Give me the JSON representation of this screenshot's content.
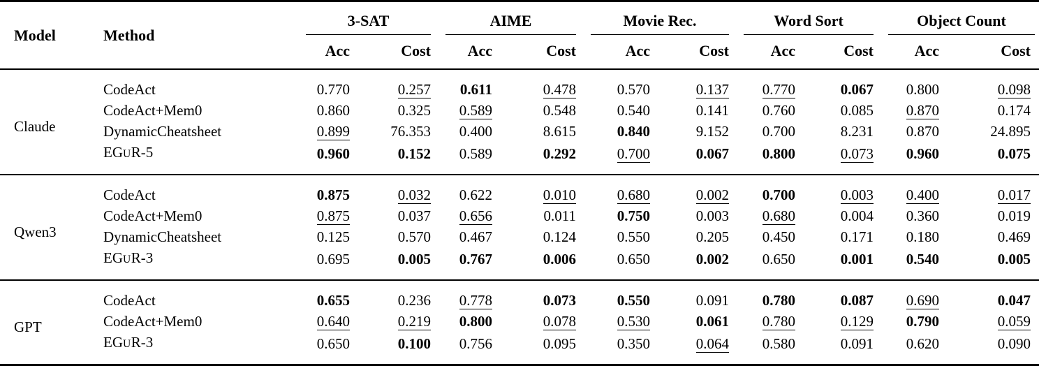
{
  "page": {
    "background_color": "#ffffff",
    "text_color": "#000000"
  },
  "table": {
    "model_header": "Model",
    "method_header": "Method",
    "acc_label": "Acc",
    "cost_label": "Cost",
    "groups": [
      "3-SAT",
      "AIME",
      "Movie Rec.",
      "Word Sort",
      "Object Count"
    ],
    "blocks": [
      {
        "model": "Claude",
        "rows": [
          {
            "method": [
              {
                "t": "CodeAct"
              }
            ],
            "cells": [
              {
                "v": "0.770",
                "s": ""
              },
              {
                "v": "0.257",
                "s": "u"
              },
              {
                "v": "0.611",
                "s": "b"
              },
              {
                "v": "0.478",
                "s": "u"
              },
              {
                "v": "0.570",
                "s": ""
              },
              {
                "v": "0.137",
                "s": "u"
              },
              {
                "v": "0.770",
                "s": "u"
              },
              {
                "v": "0.067",
                "s": "b"
              },
              {
                "v": "0.800",
                "s": ""
              },
              {
                "v": "0.098",
                "s": "u"
              }
            ]
          },
          {
            "method": [
              {
                "t": "CodeAct+Mem0"
              }
            ],
            "cells": [
              {
                "v": "0.860",
                "s": ""
              },
              {
                "v": "0.325",
                "s": ""
              },
              {
                "v": "0.589",
                "s": "u"
              },
              {
                "v": "0.548",
                "s": ""
              },
              {
                "v": "0.540",
                "s": ""
              },
              {
                "v": "0.141",
                "s": ""
              },
              {
                "v": "0.760",
                "s": ""
              },
              {
                "v": "0.085",
                "s": ""
              },
              {
                "v": "0.870",
                "s": "u"
              },
              {
                "v": "0.174",
                "s": ""
              }
            ]
          },
          {
            "method": [
              {
                "t": "DynamicCheatsheet"
              }
            ],
            "cells": [
              {
                "v": "0.899",
                "s": "u"
              },
              {
                "v": "76.353",
                "s": ""
              },
              {
                "v": "0.400",
                "s": ""
              },
              {
                "v": "8.615",
                "s": ""
              },
              {
                "v": "0.840",
                "s": "b"
              },
              {
                "v": "9.152",
                "s": ""
              },
              {
                "v": "0.700",
                "s": ""
              },
              {
                "v": "8.231",
                "s": ""
              },
              {
                "v": "0.870",
                "s": ""
              },
              {
                "v": "24.895",
                "s": ""
              }
            ]
          },
          {
            "method": [
              {
                "t": "EG"
              },
              {
                "t": "U",
                "sc": true
              },
              {
                "t": "R-5"
              }
            ],
            "cells": [
              {
                "v": "0.960",
                "s": "b"
              },
              {
                "v": "0.152",
                "s": "b"
              },
              {
                "v": "0.589",
                "s": ""
              },
              {
                "v": "0.292",
                "s": "b"
              },
              {
                "v": "0.700",
                "s": "u"
              },
              {
                "v": "0.067",
                "s": "b"
              },
              {
                "v": "0.800",
                "s": "b"
              },
              {
                "v": "0.073",
                "s": "u"
              },
              {
                "v": "0.960",
                "s": "b"
              },
              {
                "v": "0.075",
                "s": "b"
              }
            ]
          }
        ]
      },
      {
        "model": "Qwen3",
        "rows": [
          {
            "method": [
              {
                "t": "CodeAct"
              }
            ],
            "cells": [
              {
                "v": "0.875",
                "s": "b"
              },
              {
                "v": "0.032",
                "s": "u"
              },
              {
                "v": "0.622",
                "s": ""
              },
              {
                "v": "0.010",
                "s": "u"
              },
              {
                "v": "0.680",
                "s": "u"
              },
              {
                "v": "0.002",
                "s": "u"
              },
              {
                "v": "0.700",
                "s": "b"
              },
              {
                "v": "0.003",
                "s": "u"
              },
              {
                "v": "0.400",
                "s": "u"
              },
              {
                "v": "0.017",
                "s": "u"
              }
            ]
          },
          {
            "method": [
              {
                "t": "CodeAct+Mem0"
              }
            ],
            "cells": [
              {
                "v": "0.875",
                "s": "u"
              },
              {
                "v": "0.037",
                "s": ""
              },
              {
                "v": "0.656",
                "s": "u"
              },
              {
                "v": "0.011",
                "s": ""
              },
              {
                "v": "0.750",
                "s": "b"
              },
              {
                "v": "0.003",
                "s": ""
              },
              {
                "v": "0.680",
                "s": "u"
              },
              {
                "v": "0.004",
                "s": ""
              },
              {
                "v": "0.360",
                "s": ""
              },
              {
                "v": "0.019",
                "s": ""
              }
            ]
          },
          {
            "method": [
              {
                "t": "DynamicCheatsheet"
              }
            ],
            "cells": [
              {
                "v": "0.125",
                "s": ""
              },
              {
                "v": "0.570",
                "s": ""
              },
              {
                "v": "0.467",
                "s": ""
              },
              {
                "v": "0.124",
                "s": ""
              },
              {
                "v": "0.550",
                "s": ""
              },
              {
                "v": "0.205",
                "s": ""
              },
              {
                "v": "0.450",
                "s": ""
              },
              {
                "v": "0.171",
                "s": ""
              },
              {
                "v": "0.180",
                "s": ""
              },
              {
                "v": "0.469",
                "s": ""
              }
            ]
          },
          {
            "method": [
              {
                "t": "EG"
              },
              {
                "t": "U",
                "sc": true
              },
              {
                "t": "R-3"
              }
            ],
            "cells": [
              {
                "v": "0.695",
                "s": ""
              },
              {
                "v": "0.005",
                "s": "b"
              },
              {
                "v": "0.767",
                "s": "b"
              },
              {
                "v": "0.006",
                "s": "b"
              },
              {
                "v": "0.650",
                "s": ""
              },
              {
                "v": "0.002",
                "s": "b"
              },
              {
                "v": "0.650",
                "s": ""
              },
              {
                "v": "0.001",
                "s": "b"
              },
              {
                "v": "0.540",
                "s": "b"
              },
              {
                "v": "0.005",
                "s": "b"
              }
            ]
          }
        ]
      },
      {
        "model": "GPT",
        "rows": [
          {
            "method": [
              {
                "t": "CodeAct"
              }
            ],
            "cells": [
              {
                "v": "0.655",
                "s": "b"
              },
              {
                "v": "0.236",
                "s": ""
              },
              {
                "v": "0.778",
                "s": "u"
              },
              {
                "v": "0.073",
                "s": "b"
              },
              {
                "v": "0.550",
                "s": "b"
              },
              {
                "v": "0.091",
                "s": ""
              },
              {
                "v": "0.780",
                "s": "b"
              },
              {
                "v": "0.087",
                "s": "b"
              },
              {
                "v": "0.690",
                "s": "u"
              },
              {
                "v": "0.047",
                "s": "b"
              }
            ]
          },
          {
            "method": [
              {
                "t": "CodeAct+Mem0"
              }
            ],
            "cells": [
              {
                "v": "0.640",
                "s": "u"
              },
              {
                "v": "0.219",
                "s": "u"
              },
              {
                "v": "0.800",
                "s": "b"
              },
              {
                "v": "0.078",
                "s": "u"
              },
              {
                "v": "0.530",
                "s": "u"
              },
              {
                "v": "0.061",
                "s": "b"
              },
              {
                "v": "0.780",
                "s": "u"
              },
              {
                "v": "0.129",
                "s": "u"
              },
              {
                "v": "0.790",
                "s": "b"
              },
              {
                "v": "0.059",
                "s": "u"
              }
            ]
          },
          {
            "method": [
              {
                "t": "EG"
              },
              {
                "t": "U",
                "sc": true
              },
              {
                "t": "R-3"
              }
            ],
            "cells": [
              {
                "v": "0.650",
                "s": ""
              },
              {
                "v": "0.100",
                "s": "b"
              },
              {
                "v": "0.756",
                "s": ""
              },
              {
                "v": "0.095",
                "s": ""
              },
              {
                "v": "0.350",
                "s": ""
              },
              {
                "v": "0.064",
                "s": "u"
              },
              {
                "v": "0.580",
                "s": ""
              },
              {
                "v": "0.091",
                "s": ""
              },
              {
                "v": "0.620",
                "s": ""
              },
              {
                "v": "0.090",
                "s": ""
              }
            ]
          }
        ]
      }
    ]
  }
}
